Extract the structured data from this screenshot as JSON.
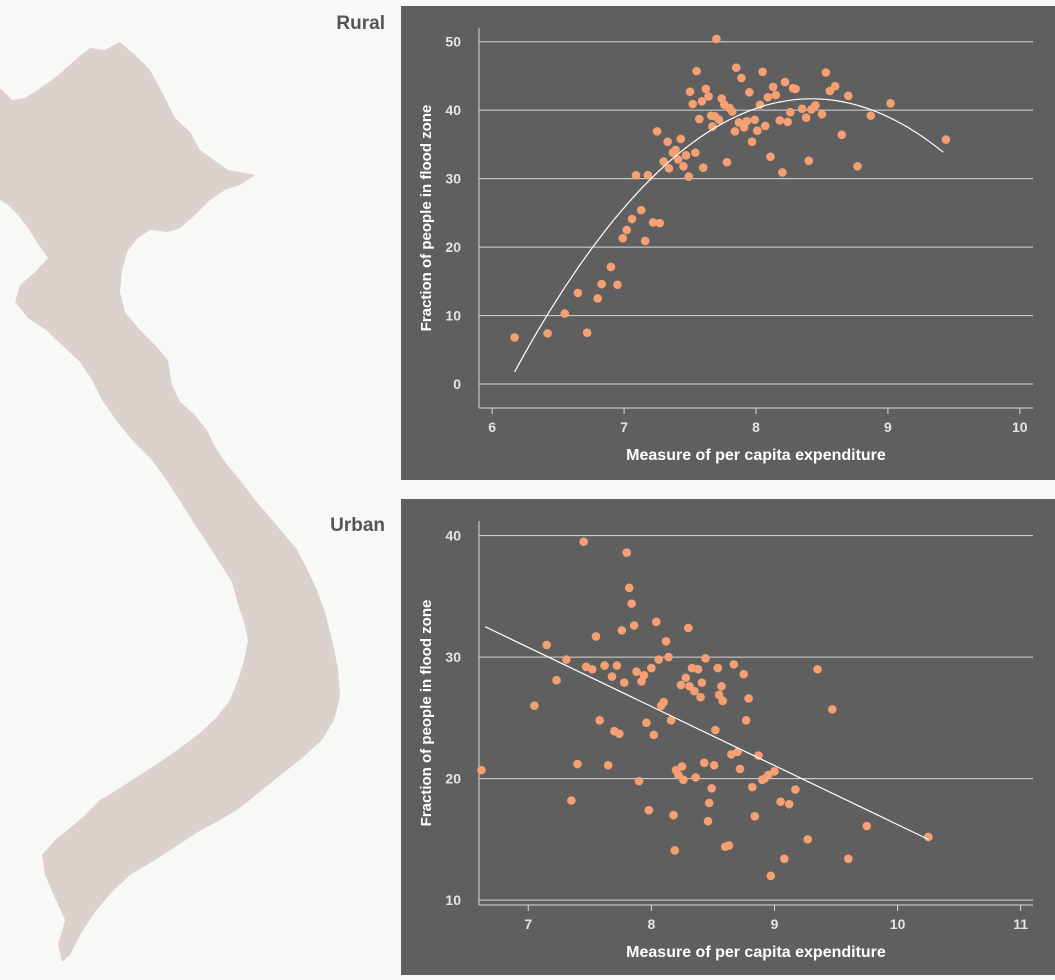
{
  "labels": {
    "rural": "Rural",
    "urban": "Urban"
  },
  "colors": {
    "panel_bg": "#5f5f5f",
    "point": "#f5a072",
    "grid": "#d8d8d8",
    "text": "#e4e4e4",
    "map": "#dbd2cd"
  },
  "chart_data": [
    {
      "type": "scatter",
      "title": "",
      "xlabel": "Measure of per capita expenditure",
      "ylabel": "Fraction of people in flood zone",
      "xlim": [
        5.9,
        10.1
      ],
      "ylim": [
        -3.5,
        52
      ],
      "xticks": [
        6,
        7,
        8,
        9,
        10
      ],
      "yticks": [
        0,
        10,
        20,
        30,
        40,
        50
      ],
      "grid": "horizontal",
      "fit": {
        "kind": "quadratic",
        "x_range": [
          6.17,
          9.42
        ],
        "a": -7.86,
        "b": 132.4,
        "c": -515.9
      },
      "points": [
        [
          6.17,
          6.8
        ],
        [
          6.42,
          7.4
        ],
        [
          6.55,
          10.3
        ],
        [
          6.65,
          13.3
        ],
        [
          6.72,
          7.5
        ],
        [
          6.8,
          12.5
        ],
        [
          6.83,
          14.6
        ],
        [
          6.9,
          17.1
        ],
        [
          6.95,
          14.5
        ],
        [
          6.99,
          21.3
        ],
        [
          7.02,
          22.5
        ],
        [
          7.06,
          24.1
        ],
        [
          7.09,
          30.5
        ],
        [
          7.13,
          25.4
        ],
        [
          7.16,
          20.9
        ],
        [
          7.18,
          30.5
        ],
        [
          7.22,
          23.6
        ],
        [
          7.25,
          36.9
        ],
        [
          7.27,
          23.5
        ],
        [
          7.3,
          32.5
        ],
        [
          7.33,
          35.4
        ],
        [
          7.34,
          31.5
        ],
        [
          7.37,
          33.8
        ],
        [
          7.39,
          34.2
        ],
        [
          7.41,
          32.8
        ],
        [
          7.43,
          35.8
        ],
        [
          7.45,
          31.8
        ],
        [
          7.47,
          33.4
        ],
        [
          7.49,
          30.3
        ],
        [
          7.5,
          42.7
        ],
        [
          7.52,
          40.9
        ],
        [
          7.54,
          33.8
        ],
        [
          7.55,
          45.7
        ],
        [
          7.57,
          38.7
        ],
        [
          7.59,
          41.3
        ],
        [
          7.6,
          31.6
        ],
        [
          7.62,
          43.1
        ],
        [
          7.64,
          42.0
        ],
        [
          7.66,
          39.2
        ],
        [
          7.67,
          37.6
        ],
        [
          7.69,
          39.1
        ],
        [
          7.7,
          50.4
        ],
        [
          7.72,
          38.6
        ],
        [
          7.74,
          41.7
        ],
        [
          7.76,
          40.8
        ],
        [
          7.78,
          32.4
        ],
        [
          7.8,
          40.3
        ],
        [
          7.82,
          39.8
        ],
        [
          7.84,
          36.9
        ],
        [
          7.85,
          46.2
        ],
        [
          7.87,
          38.2
        ],
        [
          7.89,
          44.7
        ],
        [
          7.91,
          37.5
        ],
        [
          7.93,
          38.4
        ],
        [
          7.95,
          42.6
        ],
        [
          7.97,
          35.4
        ],
        [
          7.99,
          38.6
        ],
        [
          8.01,
          37.0
        ],
        [
          8.03,
          40.8
        ],
        [
          8.05,
          45.6
        ],
        [
          8.07,
          37.7
        ],
        [
          8.09,
          41.9
        ],
        [
          8.11,
          33.2
        ],
        [
          8.13,
          43.4
        ],
        [
          8.15,
          42.2
        ],
        [
          8.18,
          38.5
        ],
        [
          8.2,
          30.9
        ],
        [
          8.22,
          44.1
        ],
        [
          8.24,
          38.3
        ],
        [
          8.26,
          39.7
        ],
        [
          8.28,
          43.2
        ],
        [
          8.3,
          43.1
        ],
        [
          8.35,
          40.2
        ],
        [
          8.38,
          38.9
        ],
        [
          8.4,
          32.6
        ],
        [
          8.42,
          40.1
        ],
        [
          8.45,
          40.7
        ],
        [
          8.5,
          39.4
        ],
        [
          8.53,
          45.5
        ],
        [
          8.56,
          42.8
        ],
        [
          8.6,
          43.5
        ],
        [
          8.65,
          36.4
        ],
        [
          8.7,
          42.1
        ],
        [
          8.77,
          31.8
        ],
        [
          8.87,
          39.2
        ],
        [
          9.02,
          41.0
        ],
        [
          9.44,
          35.7
        ]
      ]
    },
    {
      "type": "scatter",
      "title": "",
      "xlabel": "Measure of per capita expenditure",
      "ylabel": "Fraction of people in flood zone",
      "xlim": [
        6.6,
        11.1
      ],
      "ylim": [
        9.6,
        41.2
      ],
      "xticks": [
        7,
        8,
        9,
        10,
        11
      ],
      "yticks": [
        10,
        20,
        30,
        40
      ],
      "grid": "horizontal",
      "fit": {
        "kind": "linear",
        "x1": 6.65,
        "y1": 32.5,
        "x2": 10.25,
        "y2": 15.0
      },
      "points": [
        [
          6.62,
          20.7
        ],
        [
          7.05,
          26.0
        ],
        [
          7.15,
          31.0
        ],
        [
          7.23,
          28.1
        ],
        [
          7.31,
          29.8
        ],
        [
          7.35,
          18.2
        ],
        [
          7.4,
          21.2
        ],
        [
          7.45,
          39.5
        ],
        [
          7.47,
          29.2
        ],
        [
          7.52,
          29.0
        ],
        [
          7.55,
          31.7
        ],
        [
          7.58,
          24.8
        ],
        [
          7.62,
          29.3
        ],
        [
          7.65,
          21.1
        ],
        [
          7.68,
          28.4
        ],
        [
          7.7,
          23.9
        ],
        [
          7.72,
          29.3
        ],
        [
          7.74,
          23.7
        ],
        [
          7.76,
          32.2
        ],
        [
          7.78,
          27.9
        ],
        [
          7.8,
          38.6
        ],
        [
          7.82,
          35.7
        ],
        [
          7.84,
          34.4
        ],
        [
          7.86,
          32.6
        ],
        [
          7.88,
          28.8
        ],
        [
          7.9,
          19.8
        ],
        [
          7.92,
          28.0
        ],
        [
          7.94,
          28.5
        ],
        [
          7.96,
          24.6
        ],
        [
          7.98,
          17.4
        ],
        [
          8.0,
          29.1
        ],
        [
          8.02,
          23.6
        ],
        [
          8.04,
          32.9
        ],
        [
          8.06,
          29.8
        ],
        [
          8.08,
          26.0
        ],
        [
          8.1,
          26.3
        ],
        [
          8.12,
          31.3
        ],
        [
          8.14,
          30.0
        ],
        [
          8.16,
          24.8
        ],
        [
          8.18,
          17.0
        ],
        [
          8.19,
          14.1
        ],
        [
          8.2,
          20.7
        ],
        [
          8.22,
          20.3
        ],
        [
          8.24,
          27.7
        ],
        [
          8.25,
          21.0
        ],
        [
          8.26,
          19.9
        ],
        [
          8.28,
          28.3
        ],
        [
          8.3,
          32.4
        ],
        [
          8.31,
          27.6
        ],
        [
          8.33,
          29.1
        ],
        [
          8.35,
          27.2
        ],
        [
          8.36,
          20.1
        ],
        [
          8.38,
          29.0
        ],
        [
          8.4,
          26.7
        ],
        [
          8.41,
          27.9
        ],
        [
          8.43,
          21.3
        ],
        [
          8.44,
          29.9
        ],
        [
          8.46,
          16.5
        ],
        [
          8.47,
          18.0
        ],
        [
          8.49,
          19.2
        ],
        [
          8.51,
          21.1
        ],
        [
          8.52,
          24.0
        ],
        [
          8.54,
          29.1
        ],
        [
          8.55,
          26.9
        ],
        [
          8.57,
          27.6
        ],
        [
          8.58,
          26.4
        ],
        [
          8.6,
          14.4
        ],
        [
          8.63,
          14.5
        ],
        [
          8.65,
          22.0
        ],
        [
          8.67,
          29.4
        ],
        [
          8.7,
          22.2
        ],
        [
          8.72,
          20.8
        ],
        [
          8.75,
          28.6
        ],
        [
          8.77,
          24.8
        ],
        [
          8.79,
          26.6
        ],
        [
          8.82,
          19.3
        ],
        [
          8.84,
          16.9
        ],
        [
          8.87,
          21.9
        ],
        [
          8.9,
          19.9
        ],
        [
          8.92,
          20.0
        ],
        [
          8.95,
          20.3
        ],
        [
          8.97,
          12.0
        ],
        [
          9.0,
          20.6
        ],
        [
          9.05,
          18.1
        ],
        [
          9.08,
          13.4
        ],
        [
          9.12,
          17.9
        ],
        [
          9.17,
          19.1
        ],
        [
          9.27,
          15.0
        ],
        [
          9.35,
          29.0
        ],
        [
          9.47,
          25.7
        ],
        [
          9.6,
          13.4
        ],
        [
          9.75,
          16.1
        ],
        [
          10.25,
          15.2
        ]
      ]
    }
  ]
}
